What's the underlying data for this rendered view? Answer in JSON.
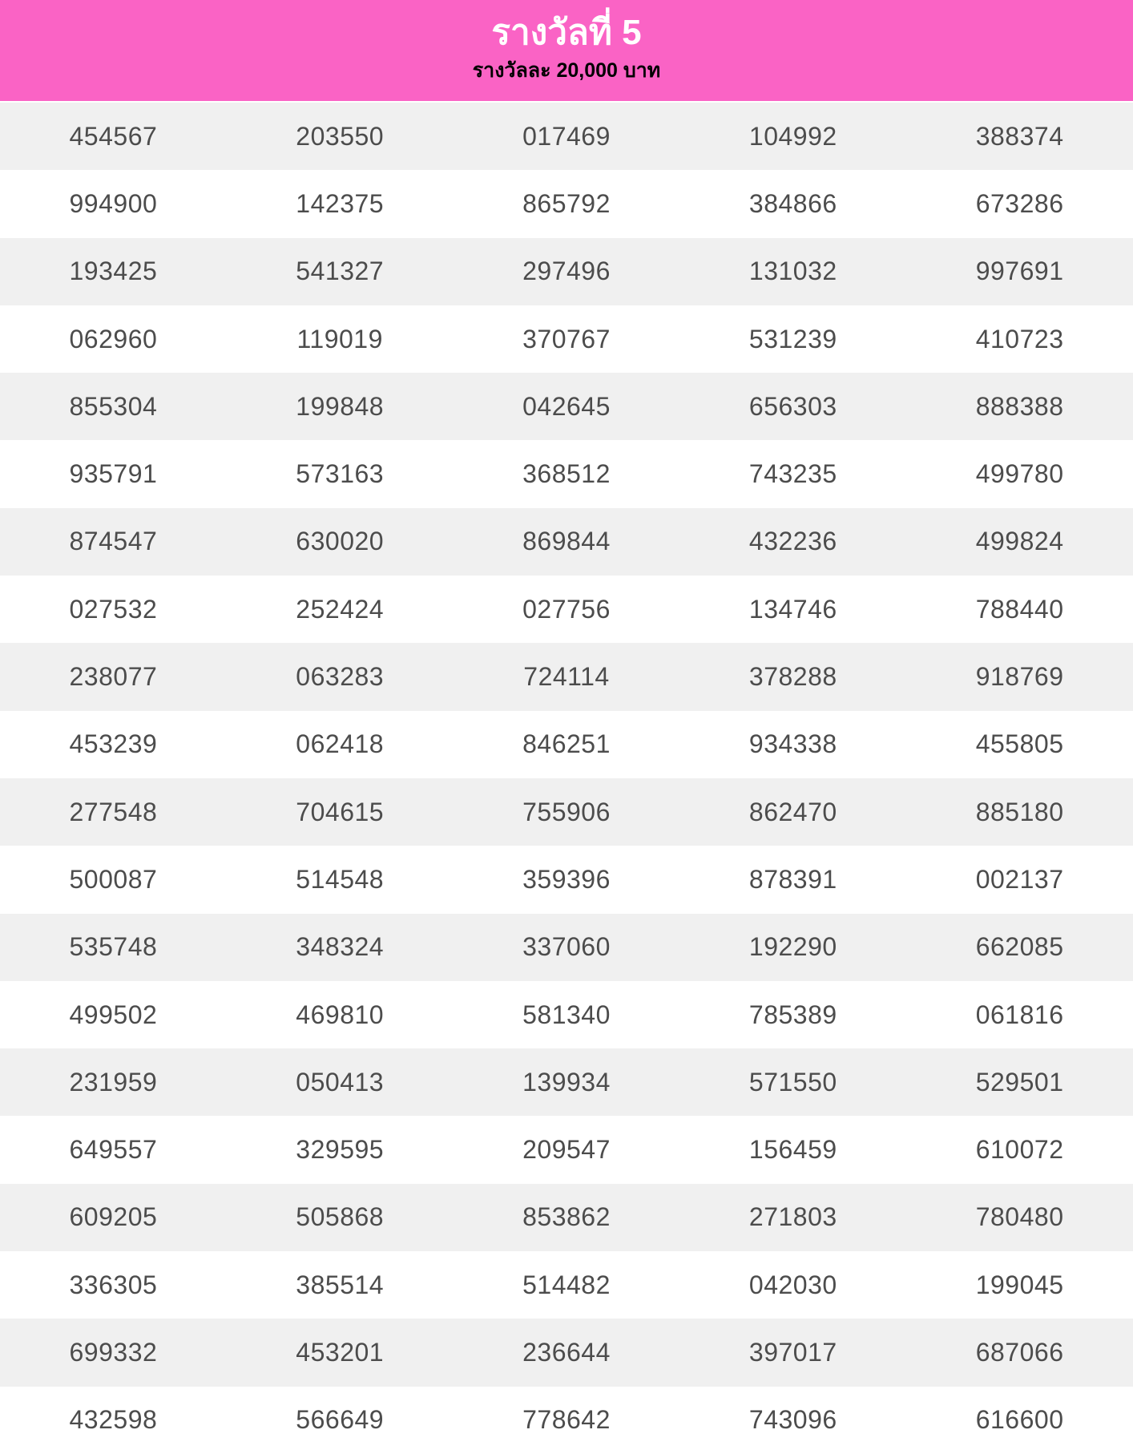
{
  "header": {
    "title": "รางวัลที่ 5",
    "subtitle": "รางวัลละ 20,000 บาท"
  },
  "colors": {
    "header_bg": "#fa63c5",
    "header_title": "#ffffff",
    "header_subtitle": "#000000",
    "row_stripe": "#f0f0f0",
    "row_plain": "#ffffff",
    "number_text": "#4c4c4c"
  },
  "prize_table": {
    "columns": 5,
    "rows": [
      [
        "454567",
        "203550",
        "017469",
        "104992",
        "388374"
      ],
      [
        "994900",
        "142375",
        "865792",
        "384866",
        "673286"
      ],
      [
        "193425",
        "541327",
        "297496",
        "131032",
        "997691"
      ],
      [
        "062960",
        "119019",
        "370767",
        "531239",
        "410723"
      ],
      [
        "855304",
        "199848",
        "042645",
        "656303",
        "888388"
      ],
      [
        "935791",
        "573163",
        "368512",
        "743235",
        "499780"
      ],
      [
        "874547",
        "630020",
        "869844",
        "432236",
        "499824"
      ],
      [
        "027532",
        "252424",
        "027756",
        "134746",
        "788440"
      ],
      [
        "238077",
        "063283",
        "724114",
        "378288",
        "918769"
      ],
      [
        "453239",
        "062418",
        "846251",
        "934338",
        "455805"
      ],
      [
        "277548",
        "704615",
        "755906",
        "862470",
        "885180"
      ],
      [
        "500087",
        "514548",
        "359396",
        "878391",
        "002137"
      ],
      [
        "535748",
        "348324",
        "337060",
        "192290",
        "662085"
      ],
      [
        "499502",
        "469810",
        "581340",
        "785389",
        "061816"
      ],
      [
        "231959",
        "050413",
        "139934",
        "571550",
        "529501"
      ],
      [
        "649557",
        "329595",
        "209547",
        "156459",
        "610072"
      ],
      [
        "609205",
        "505868",
        "853862",
        "271803",
        "780480"
      ],
      [
        "336305",
        "385514",
        "514482",
        "042030",
        "199045"
      ],
      [
        "699332",
        "453201",
        "236644",
        "397017",
        "687066"
      ],
      [
        "432598",
        "566649",
        "778642",
        "743096",
        "616600"
      ]
    ]
  }
}
